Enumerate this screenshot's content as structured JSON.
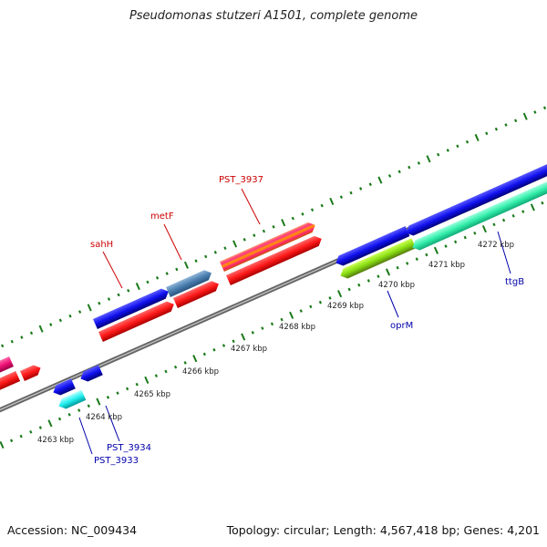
{
  "title": "Pseudomonas stutzeri A1501, complete genome",
  "footer": {
    "accession": "Accession: NC_009434",
    "summary": "Topology: circular; Length: 4,567,418 bp; Genes: 4,201"
  },
  "scale_ticks": [
    "4263 kbp",
    "4264 kbp",
    "4265 kbp",
    "4266 kbp",
    "4267 kbp",
    "4268 kbp",
    "4269 kbp",
    "4270 kbp",
    "4271 kbp",
    "4272 kbp"
  ],
  "gene_labels": {
    "sahH": "sahH",
    "metF": "metF",
    "pst3937": "PST_3937",
    "pst3933": "PST_3933",
    "pst3934": "PST_3934",
    "oprM": "oprM",
    "ttgB": "ttgB"
  },
  "colors": {
    "label_red": "#cc0000",
    "label_blue": "#0000aa",
    "dot_green": "#1a7a1a",
    "backbone": "#888888"
  }
}
